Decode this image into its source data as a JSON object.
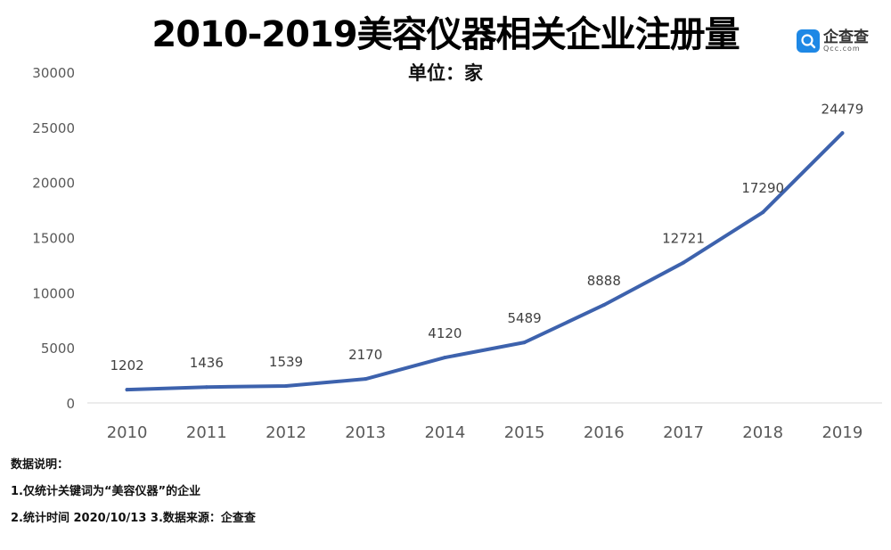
{
  "title": "2010-2019美容仪器相关企业注册量",
  "subtitle": "单位：家",
  "logo": {
    "name": "企查查",
    "sub": "Qcc.com",
    "icon": "qcc-logo-icon"
  },
  "notes": [
    "数据说明：",
    "1.仅统计关键词为“美容仪器”的企业",
    "2.统计时间 2020/10/13    3.数据来源：企查查"
  ],
  "colors": {
    "line": "#3d62ad",
    "axis": "#d9d9d9",
    "tick_text": "#595959",
    "label_text": "#404040",
    "logo_blue": "#1e88e5"
  },
  "chart_data": {
    "type": "line",
    "categories": [
      "2010",
      "2011",
      "2012",
      "2013",
      "2014",
      "2015",
      "2016",
      "2017",
      "2018",
      "2019"
    ],
    "series": [
      {
        "values": [
          1202,
          1436,
          1539,
          2170,
          4120,
          5489,
          8888,
          12721,
          17290,
          24479
        ]
      }
    ],
    "ylim": [
      0,
      30000
    ],
    "yticks": [
      0,
      5000,
      10000,
      15000,
      20000,
      25000,
      30000
    ],
    "grid": false,
    "data_labels": true,
    "legend": "none"
  }
}
